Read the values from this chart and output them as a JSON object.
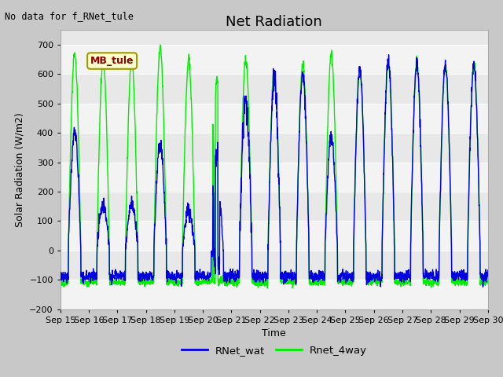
{
  "title": "Net Radiation",
  "no_data_text": "No data for f_RNet_tule",
  "ylabel": "Solar Radiation (W/m2)",
  "xlabel": "Time",
  "ylim": [
    -200,
    750
  ],
  "yticks": [
    -200,
    -100,
    0,
    100,
    200,
    300,
    400,
    500,
    600,
    700
  ],
  "xlim": [
    0,
    15
  ],
  "xtick_labels": [
    "Sep 15",
    "Sep 16",
    "Sep 17",
    "Sep 18",
    "Sep 19",
    "Sep 20",
    "Sep 21",
    "Sep 22",
    "Sep 23",
    "Sep 24",
    "Sep 25",
    "Sep 26",
    "Sep 27",
    "Sep 28",
    "Sep 29",
    "Sep 30"
  ],
  "legend_label1": "RNet_wat",
  "legend_label2": "Rnet_4way",
  "color_blue": "#0000dd",
  "color_green": "#00ee00",
  "legend_box_text": "MB_tule",
  "fig_bg_color": "#c8c8c8",
  "plot_bg_color": "#e8e8e8",
  "grid_color": "#ffffff",
  "title_fontsize": 13,
  "label_fontsize": 9,
  "tick_fontsize": 8,
  "line_width": 1.0
}
